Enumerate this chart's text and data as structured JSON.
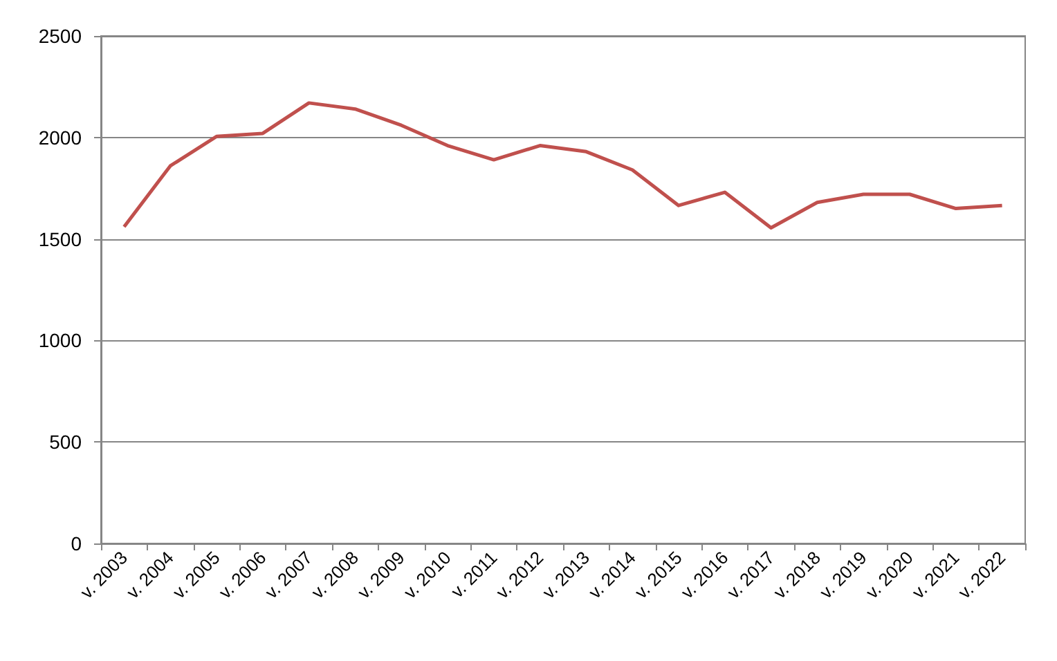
{
  "chart_data": {
    "type": "line",
    "categories": [
      "v. 2003",
      "v. 2004",
      "v. 2005",
      "v. 2006",
      "v. 2007",
      "v. 2008",
      "v. 2009",
      "v. 2010",
      "v. 2011",
      "v. 2012",
      "v. 2013",
      "v. 2014",
      "v. 2015",
      "v. 2016",
      "v. 2017",
      "v. 2018",
      "v. 2019",
      "v. 2020",
      "v. 2021",
      "v. 2022"
    ],
    "series": [
      {
        "color": "#c0504d",
        "values": [
          1560,
          1860,
          2005,
          2020,
          2170,
          2140,
          2060,
          1960,
          1890,
          1960,
          1930,
          1840,
          1665,
          1730,
          1555,
          1680,
          1720,
          1720,
          1650,
          1665
        ]
      }
    ],
    "ylim": [
      0,
      2500
    ],
    "yticks": [
      0,
      500,
      1000,
      1500,
      2000,
      2500
    ],
    "grid": "y",
    "marker": "none",
    "line_style": "solid"
  }
}
